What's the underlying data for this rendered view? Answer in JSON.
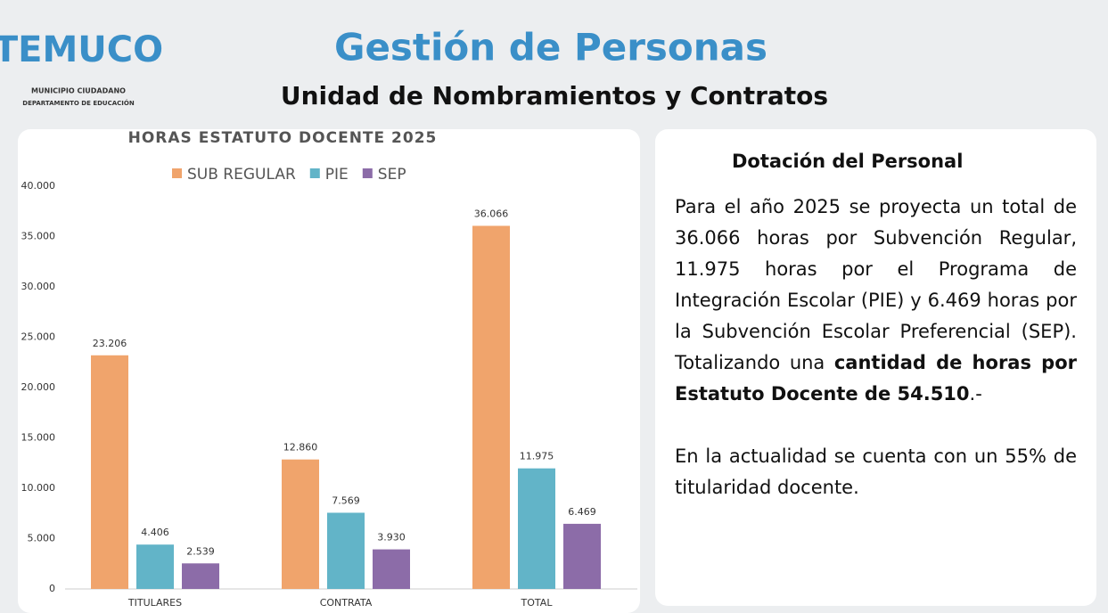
{
  "header": {
    "logo": {
      "name": "TEMUCO",
      "tagline": "MUNICIPIO CIUDADANO",
      "department": "DEPARTAMENTO DE EDUCACIÓN"
    },
    "title": "Gestión de Personas",
    "subtitle": "Unidad de Nombramientos y Contratos"
  },
  "chart_data": {
    "type": "bar",
    "title": "HORAS ESTATUTO DOCENTE 2025",
    "categories": [
      "TITULARES",
      "CONTRATA",
      "TOTAL"
    ],
    "series": [
      {
        "name": "SUB REGULAR",
        "color": "#f0a46c",
        "values": [
          23206,
          12860,
          36066
        ],
        "value_labels": [
          "23.206",
          "12.860",
          "36.066"
        ]
      },
      {
        "name": "PIE",
        "color": "#62b4c8",
        "values": [
          4406,
          7569,
          11975
        ],
        "value_labels": [
          "4.406",
          "7.569",
          "11.975"
        ]
      },
      {
        "name": "SEP",
        "color": "#8c6ca8",
        "values": [
          2539,
          3930,
          6469
        ],
        "value_labels": [
          "2.539",
          "3.930",
          "6.469"
        ]
      }
    ],
    "ylim": [
      0,
      40000
    ],
    "yticks": [
      0,
      {
        "value": 5000,
        "label": "5.000"
      },
      {
        "value": 10000,
        "label": "10.000"
      },
      {
        "value": 15000,
        "label": "15.000"
      },
      {
        "value": 20000,
        "label": "20.000"
      },
      {
        "value": 25000,
        "label": "25.000"
      },
      {
        "value": 30000,
        "label": "30.000"
      },
      {
        "value": 35000,
        "label": "35.000"
      },
      {
        "value": 40000,
        "label": "40.000"
      }
    ],
    "legend": "top",
    "grid": false
  },
  "panel": {
    "heading": "Dotación del Personal",
    "paragraphs": [
      {
        "text": "Para el año 2025 se proyecta un total de 36.066 horas por Subvención Regular, 11.975 horas por el Programa de Integración Escolar (PIE) y 6.469 horas por la Subvención Escolar Preferencial (SEP). Totalizando una ",
        "bold": "cantidad de horas por Estatuto Docente de 54.510",
        "end": ".-"
      },
      {
        "text": "En la actualidad se cuenta con un 55% de titularidad docente."
      }
    ]
  }
}
